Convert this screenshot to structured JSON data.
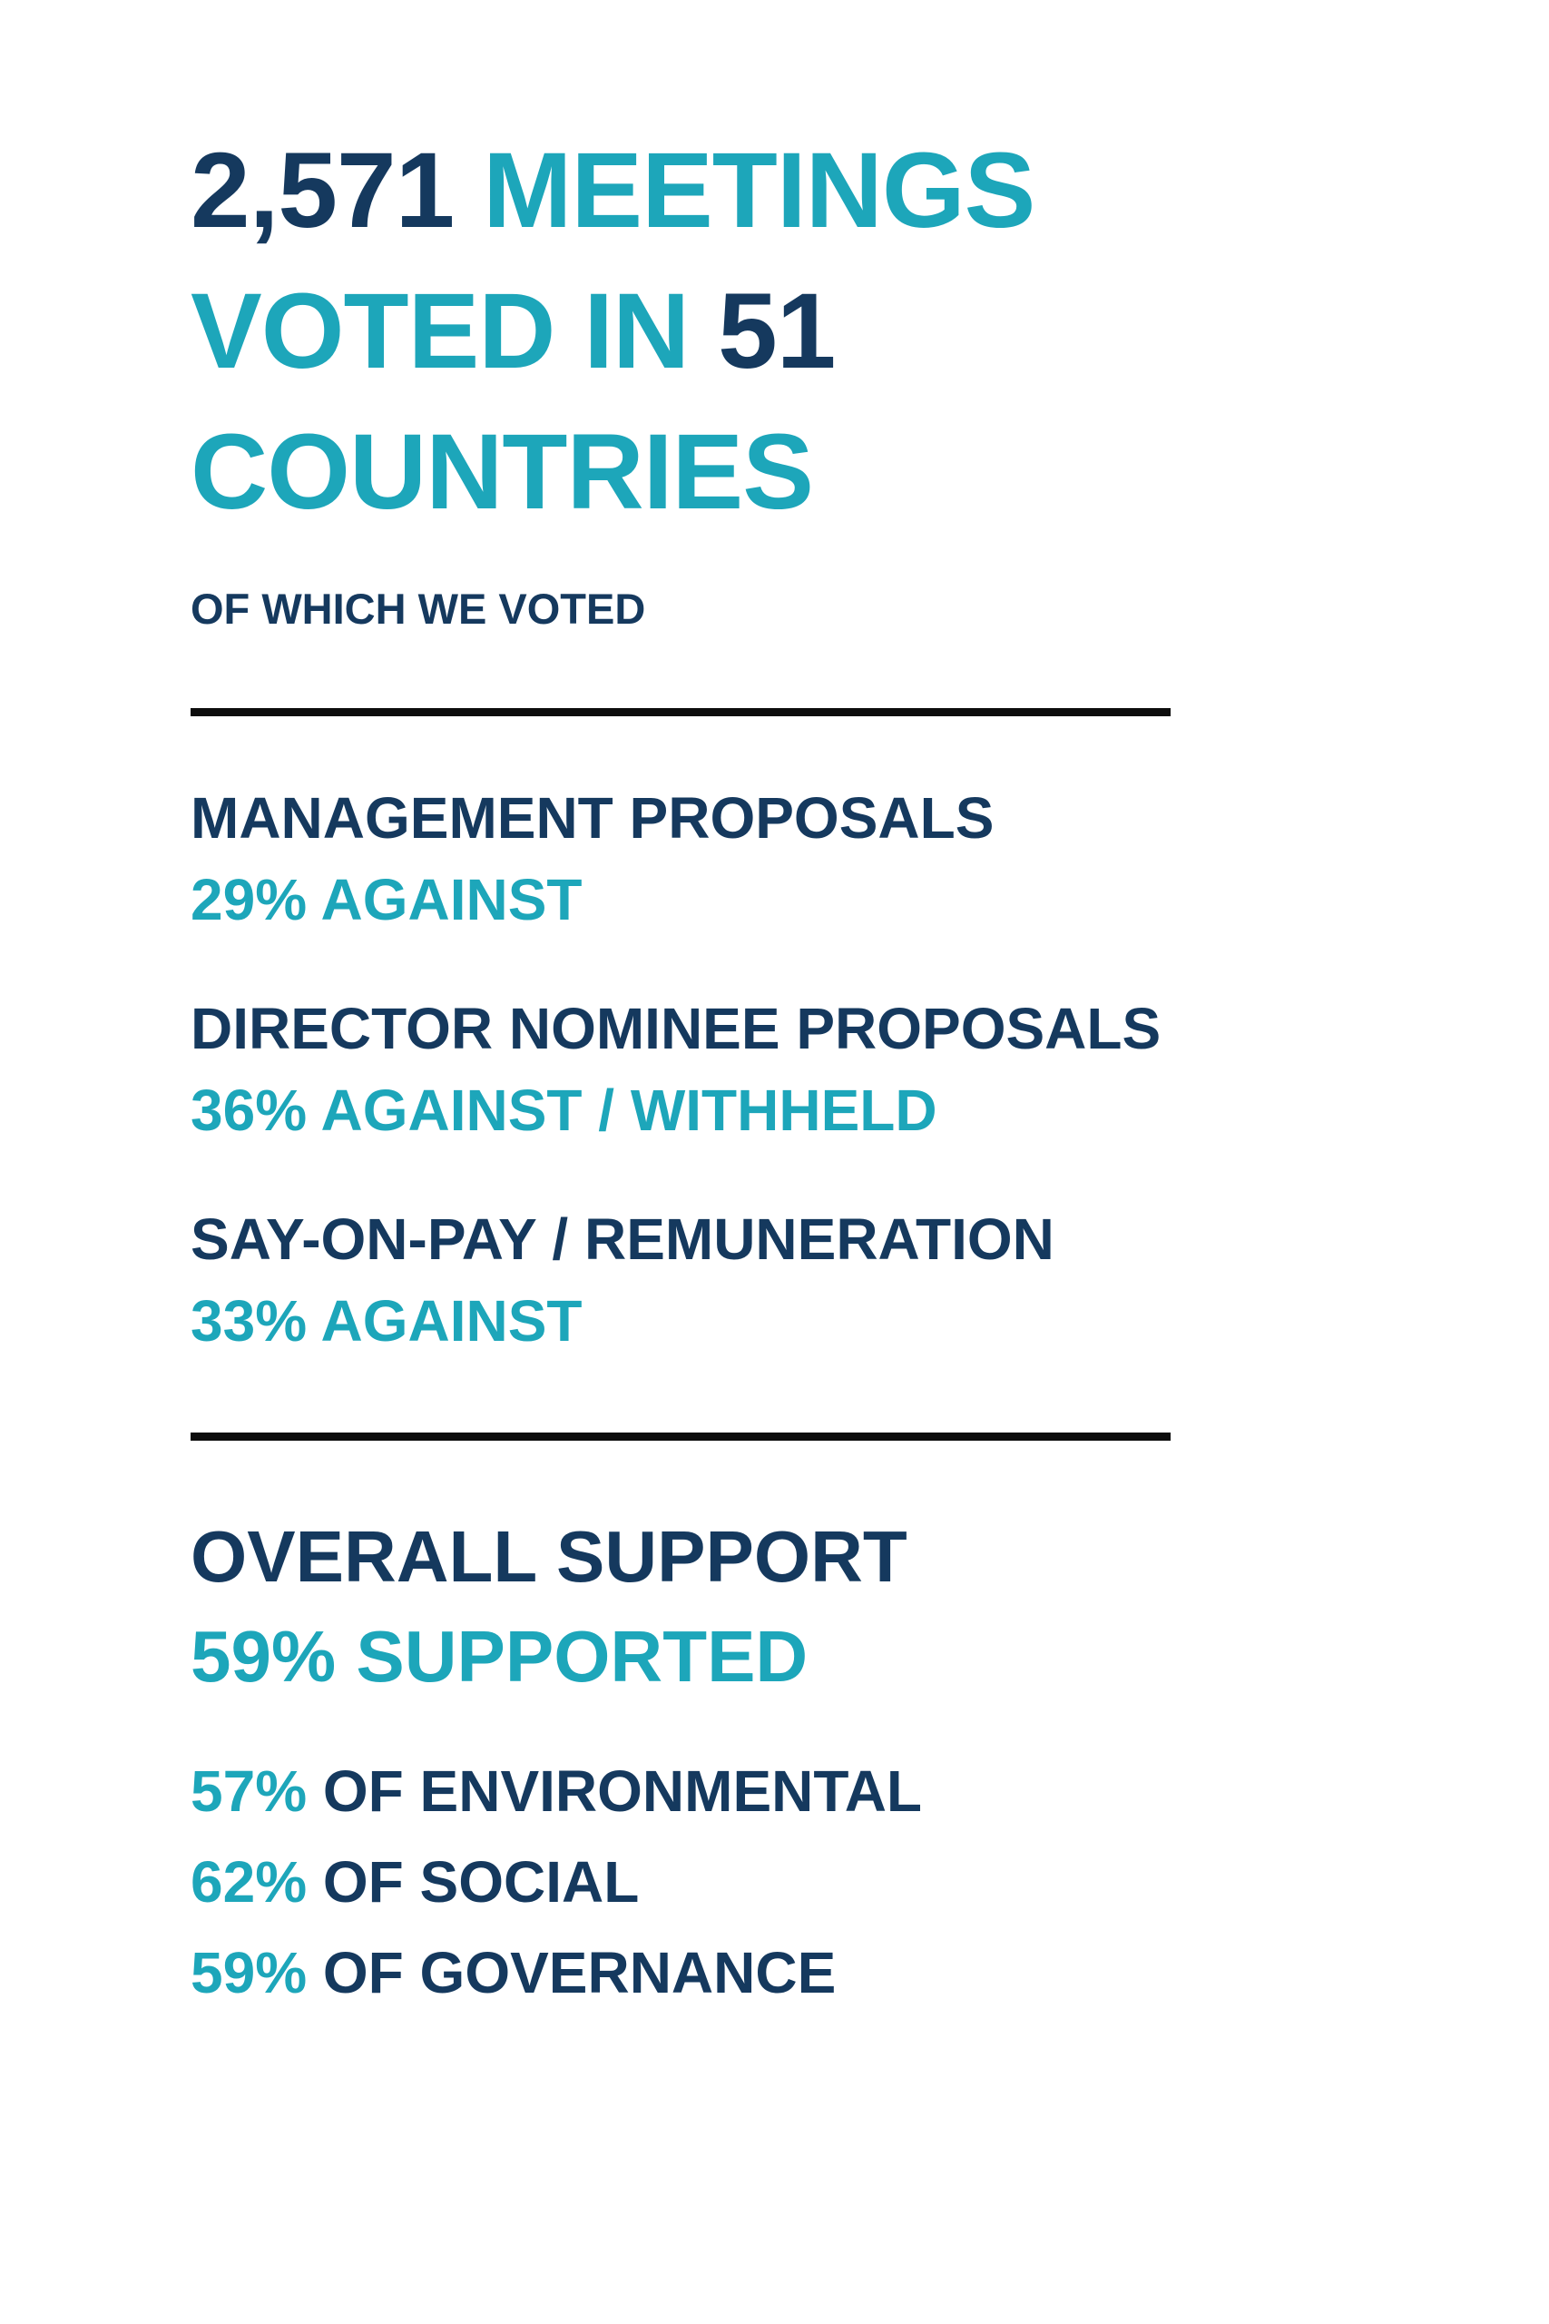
{
  "colors": {
    "navy": "#15395e",
    "teal": "#1da6ba",
    "divider": "#0d0d0d",
    "background": "#ffffff"
  },
  "headline": {
    "meetings_count": "2,571",
    "meetings_label": "MEETINGS",
    "voted_in_label": "VOTED IN",
    "countries_count": "51",
    "countries_label": "COUNTRIES"
  },
  "subtitle": "OF WHICH WE VOTED",
  "sections": [
    {
      "title": "MANAGEMENT PROPOSALS",
      "value": "29% AGAINST"
    },
    {
      "title": "DIRECTOR NOMINEE PROPOSALS",
      "value": "36% AGAINST / WITHHELD"
    },
    {
      "title": "SAY-ON-PAY / REMUNERATION",
      "value": "33% AGAINST"
    }
  ],
  "overall": {
    "title": "OVERALL SUPPORT",
    "value": "59% SUPPORTED"
  },
  "esg": [
    {
      "pct": "57%",
      "label": "OF ENVIRONMENTAL"
    },
    {
      "pct": "62%",
      "label": "OF SOCIAL"
    },
    {
      "pct": "59%",
      "label": "OF GOVERNANCE"
    }
  ]
}
